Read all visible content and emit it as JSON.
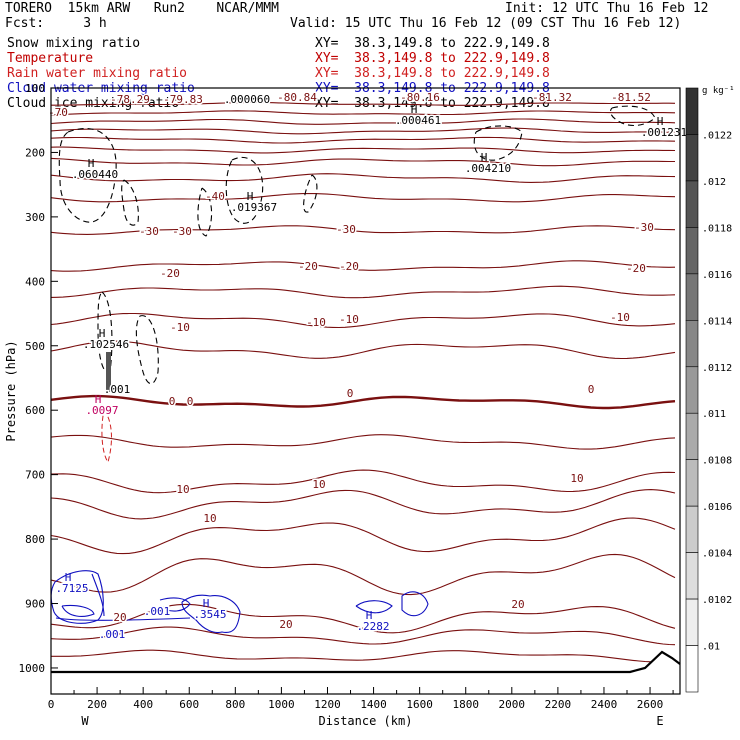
{
  "header": {
    "left_line1": "TORERO  15km ARW   Run2    NCAR/MMM",
    "left_line2": "Fcst:     3 h",
    "init": "Init: 12 UTC Thu 16 Feb 12",
    "valid": "Valid: 15 UTC Thu 16 Feb 12 (09 CST Thu 16 Feb 12)"
  },
  "legend_rows": [
    {
      "field": "Snow mixing ratio",
      "xy": "XY=  38.3,149.8 to 222.9,149.8",
      "color": "#000000",
      "xy_color": "#000000"
    },
    {
      "field": "Temperature",
      "xy": "XY=  38.3,149.8 to 222.9,149.8",
      "color": "#c00000",
      "xy_color": "#c00000"
    },
    {
      "field": "Rain water mixing ratio",
      "xy": "XY=  38.3,149.8 to 222.9,149.8",
      "color": "#d02020",
      "xy_color": "#d02020"
    },
    {
      "field": "Cloud water mixing ratio",
      "xy": "XY=  38.3,149.8 to 222.9,149.8",
      "color": "#1010c0",
      "xy_color": "#1010c0"
    },
    {
      "field": "Cloud ice mixing ratio",
      "xy": "XY=  38.3,149.8 to 222.9,149.8",
      "color": "#000000",
      "xy_color": "#000000"
    }
  ],
  "chart_data": {
    "type": "contour",
    "xlabel": "Distance (km)",
    "ylabel": "Pressure (hPa)",
    "x_ticks": [
      0,
      200,
      400,
      600,
      800,
      1000,
      1200,
      1400,
      1600,
      1800,
      2000,
      2200,
      2400,
      2600
    ],
    "y_ticks": [
      100,
      200,
      300,
      400,
      500,
      600,
      700,
      800,
      900,
      1000
    ],
    "xlim": [
      0,
      2730
    ],
    "ylim": [
      1050,
      100
    ],
    "x_end_labels": {
      "left": "W",
      "right": "E"
    },
    "colorbar": {
      "unit": "g kg⁻¹",
      "ticks": [
        ".0122",
        ".012",
        ".0118",
        ".0116",
        ".0114",
        ".0112",
        ".011",
        ".0108",
        ".0106",
        ".0104",
        ".0102",
        ".01"
      ]
    },
    "temperature_labels": [
      "-70",
      "-78.29",
      "-79.83",
      "-80.84",
      "-80.16",
      "-81.32",
      "-81.52",
      "-40",
      "-30",
      "-30",
      "-30",
      "-30",
      "-20",
      "-20",
      "-20",
      "-20",
      "-10",
      "-10",
      "-10",
      "-10",
      "0",
      "0",
      "0",
      "0",
      "10",
      "10",
      "10",
      "10",
      "20",
      "20",
      "20"
    ],
    "extrema_labels": [
      {
        "mark": "H",
        "value": ".060440",
        "field": "snow"
      },
      {
        "mark": "H",
        "value": ".019367",
        "field": "snow"
      },
      {
        "mark": "H",
        "value": ".000461",
        "field": "snow"
      },
      {
        "mark": "H",
        "value": ".004210",
        "field": "snow"
      },
      {
        "mark": "H",
        "value": ".001231",
        "field": "snow"
      },
      {
        "mark": "H",
        "value": ".102546",
        "field": "snow"
      },
      {
        "mark": "H",
        "value": ".0097",
        "field": "rain"
      },
      {
        "mark": "H",
        "value": ".7125",
        "field": "cloud water"
      },
      {
        "mark": "H",
        "value": ".3545",
        "field": "cloud water"
      },
      {
        "mark": "H",
        "value": ".2282",
        "field": "cloud water"
      }
    ],
    "other_labels": [
      ".000060",
      ".001",
      ".001",
      ".001"
    ]
  }
}
